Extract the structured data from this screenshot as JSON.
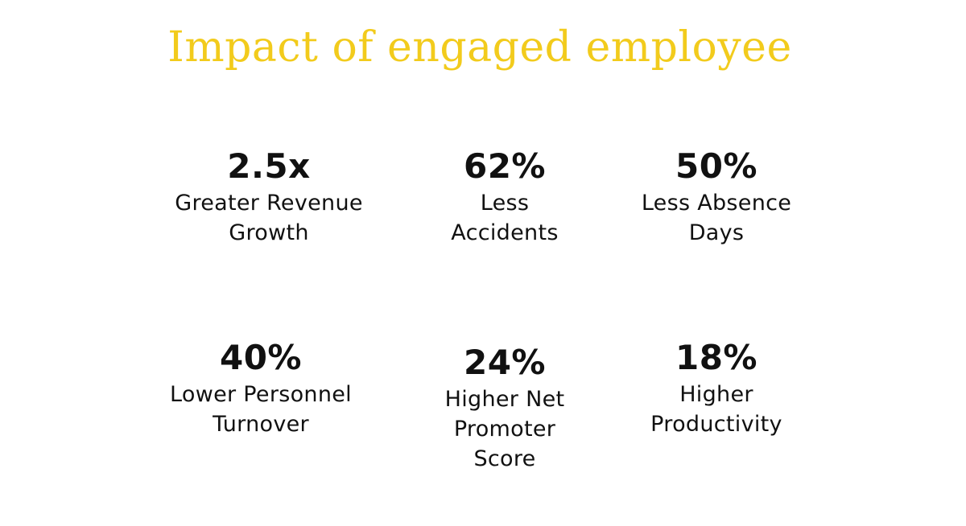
{
  "title": "Impact of engaged employee",
  "colors": {
    "title": "#F2CB1C",
    "text": "#111111",
    "background": "#FFFFFF"
  },
  "stats": [
    {
      "value": "2.5x",
      "label_lines": [
        "Greater Revenue",
        "Growth"
      ]
    },
    {
      "value": "62%",
      "label_lines": [
        "Less",
        "Accidents"
      ]
    },
    {
      "value": "50%",
      "label_lines": [
        "Less Absence",
        "Days"
      ]
    },
    {
      "value": "40%",
      "label_lines": [
        "Lower Personnel",
        "Turnover"
      ]
    },
    {
      "value": "24%",
      "label_lines": [
        "Higher Net",
        "Promoter",
        "Score"
      ]
    },
    {
      "value": "18%",
      "label_lines": [
        "Higher",
        "Productivity"
      ]
    }
  ]
}
